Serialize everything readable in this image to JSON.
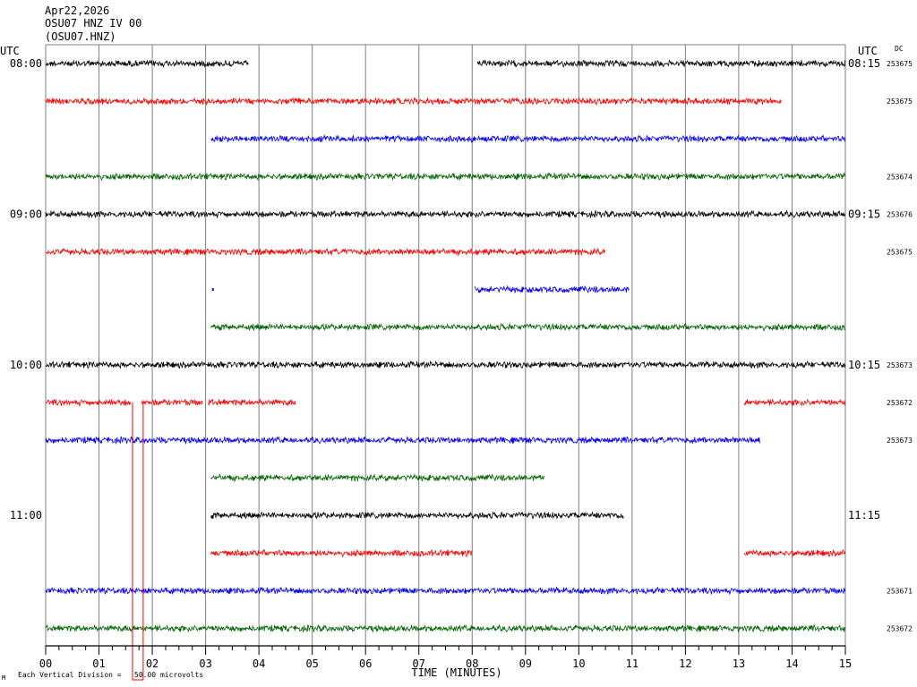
{
  "header": {
    "date": "Apr22,2026",
    "station": "OSU07 HNZ IV 00",
    "channel": "(OSU07.HNZ)"
  },
  "left_tz": "UTC",
  "right_tz": "UTC",
  "dc_label": "DC",
  "footer_mark": "M",
  "footer_scale": "Each Vertical Division =   50.00 microvolts",
  "chart_data": {
    "type": "line",
    "xlabel": "TIME (MINUTES)",
    "x_ticks": [
      "00",
      "01",
      "02",
      "03",
      "04",
      "05",
      "06",
      "07",
      "08",
      "09",
      "10",
      "11",
      "12",
      "13",
      "14",
      "15"
    ],
    "xlim": [
      0,
      15
    ],
    "grid": "vertical lines every minute",
    "left_time_labels": [
      {
        "row": 0,
        "label": "08:00"
      },
      {
        "row": 4,
        "label": "09:00"
      },
      {
        "row": 8,
        "label": "10:00"
      },
      {
        "row": 12,
        "label": "11:00"
      }
    ],
    "right_time_labels": [
      {
        "row": 0,
        "label": "08:15"
      },
      {
        "row": 4,
        "label": "09:15"
      },
      {
        "row": 8,
        "label": "10:15"
      },
      {
        "row": 12,
        "label": "11:15"
      }
    ],
    "colors": [
      "#000000",
      "#ff0000",
      "#0000ff",
      "#006400"
    ],
    "traces": [
      {
        "row": 0,
        "color": "#000000",
        "segments": [
          [
            0,
            3.8
          ],
          [
            8.1,
            15
          ]
        ],
        "dc": "253675"
      },
      {
        "row": 1,
        "color": "#ff0000",
        "segments": [
          [
            0,
            13.8
          ]
        ],
        "dc": "253675"
      },
      {
        "row": 2,
        "color": "#0000ff",
        "segments": [
          [
            3.1,
            15
          ]
        ],
        "dc": ""
      },
      {
        "row": 3,
        "color": "#006400",
        "segments": [
          [
            0,
            15
          ]
        ],
        "dc": "253674"
      },
      {
        "row": 4,
        "color": "#000000",
        "segments": [
          [
            0,
            15
          ]
        ],
        "dc": "253676"
      },
      {
        "row": 5,
        "color": "#ff0000",
        "segments": [
          [
            0,
            10.5
          ]
        ],
        "dc": "253675"
      },
      {
        "row": 6,
        "color": "#0000ff",
        "segments": [
          [
            8.05,
            10.95
          ]
        ],
        "dc": ""
      },
      {
        "row": 7,
        "color": "#006400",
        "segments": [
          [
            3.1,
            15
          ]
        ],
        "dc": ""
      },
      {
        "row": 8,
        "color": "#000000",
        "segments": [
          [
            0,
            15
          ]
        ],
        "dc": "253673"
      },
      {
        "row": 9,
        "color": "#ff0000",
        "segments": [
          [
            0,
            1.6
          ],
          [
            1.8,
            2.95
          ],
          [
            3.05,
            4.7
          ],
          [
            13.1,
            15
          ]
        ],
        "dc": "253672"
      },
      {
        "row": 10,
        "color": "#0000ff",
        "segments": [
          [
            0,
            13.4
          ]
        ],
        "dc": "253673"
      },
      {
        "row": 11,
        "color": "#006400",
        "segments": [
          [
            3.1,
            9.35
          ]
        ],
        "dc": ""
      },
      {
        "row": 12,
        "color": "#000000",
        "segments": [
          [
            3.1,
            10.85
          ]
        ],
        "dc": ""
      },
      {
        "row": 13,
        "color": "#ff0000",
        "segments": [
          [
            3.1,
            8.0
          ],
          [
            13.1,
            15
          ]
        ],
        "dc": ""
      },
      {
        "row": 14,
        "color": "#0000ff",
        "segments": [
          [
            0,
            15
          ]
        ],
        "dc": "253671"
      },
      {
        "row": 15,
        "color": "#006400",
        "segments": [
          [
            0,
            15
          ]
        ],
        "dc": "253672"
      }
    ],
    "annotations": [
      {
        "type": "spike",
        "row": 9,
        "color": "#ff0000",
        "x": [
          1.63,
          1.83
        ],
        "note": "large excursion below plot"
      },
      {
        "type": "dot",
        "row": 6,
        "color": "#0000ff",
        "x": 3.12
      }
    ]
  }
}
